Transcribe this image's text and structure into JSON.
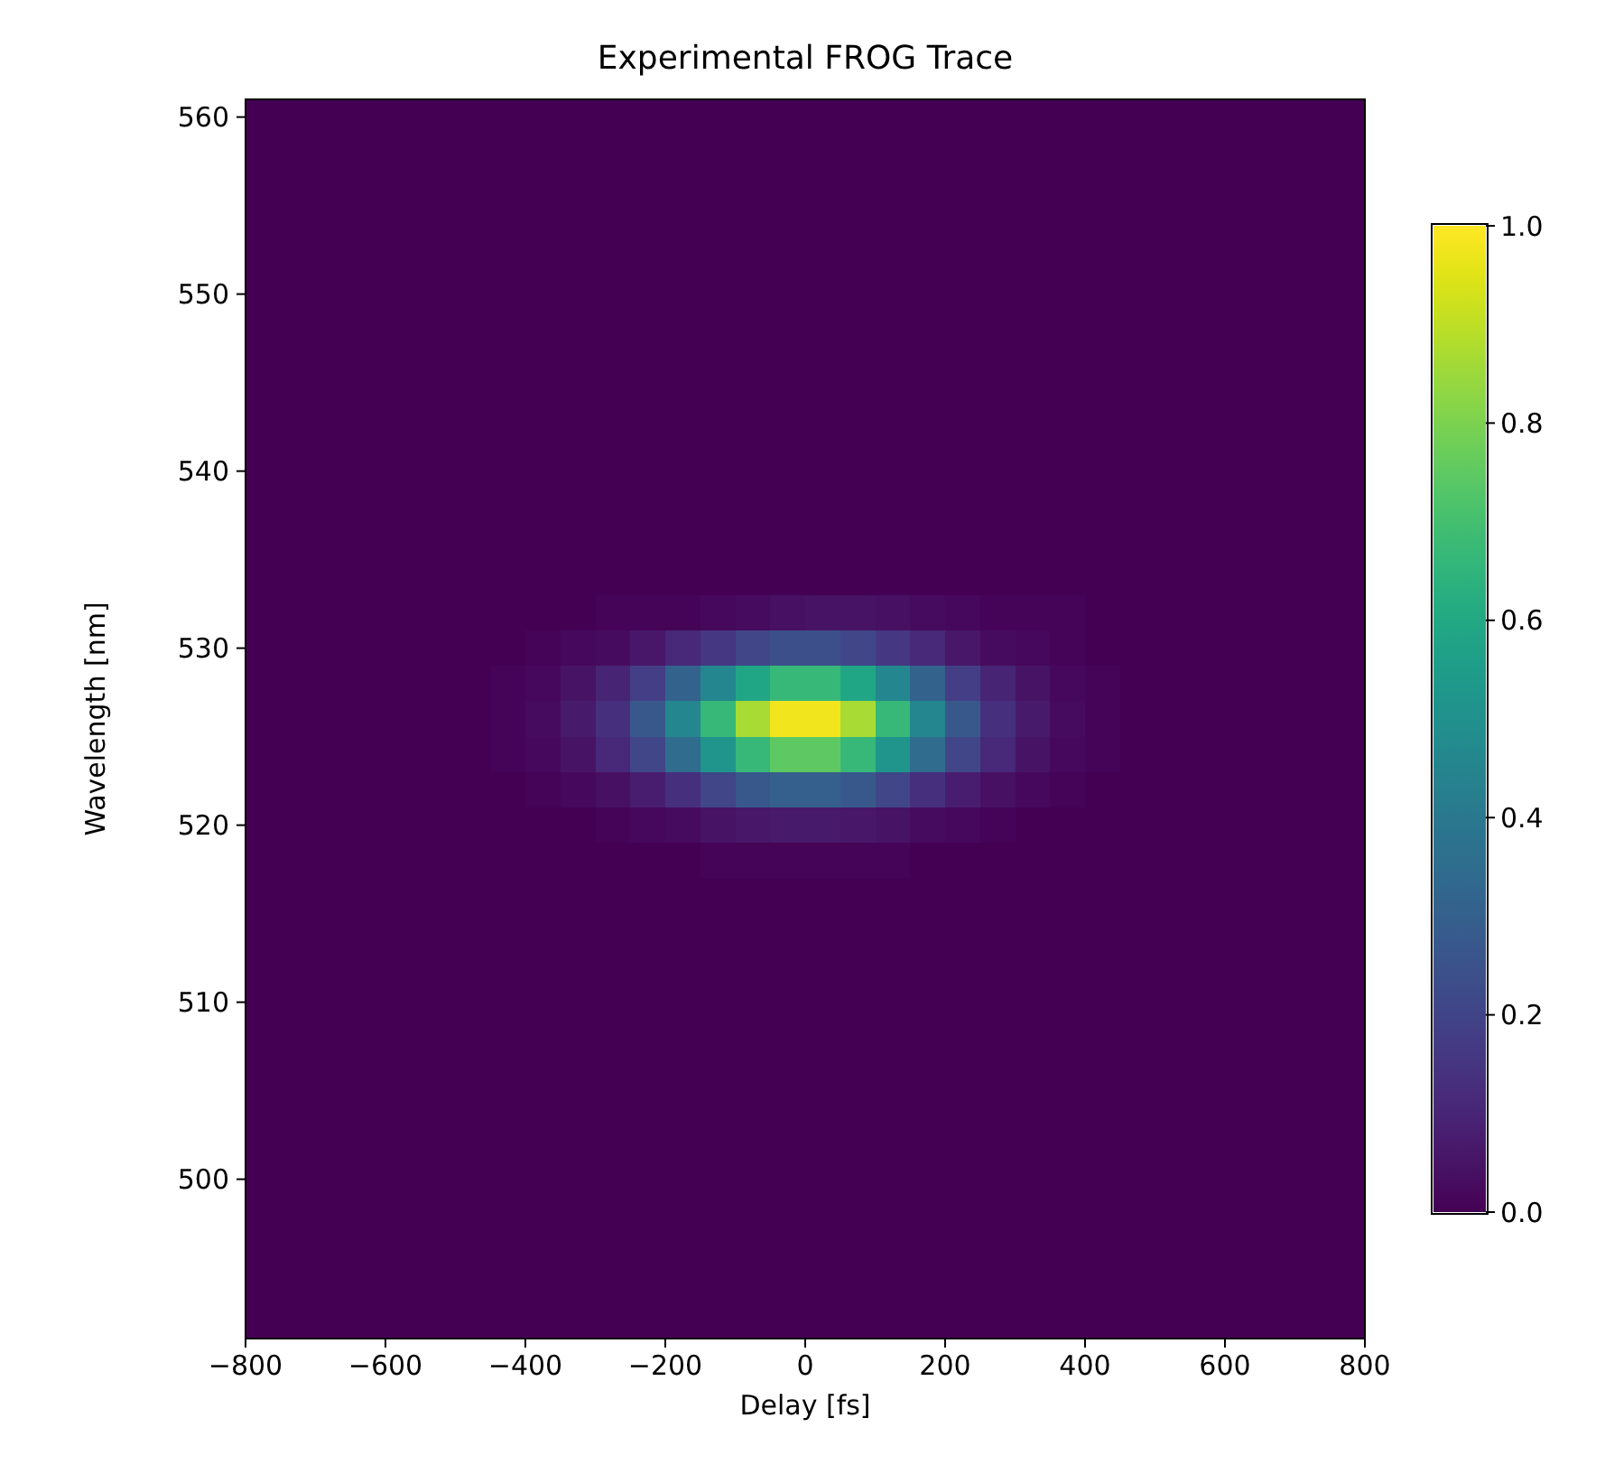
{
  "chart_data": {
    "type": "heatmap",
    "title": "Experimental FROG Trace",
    "xlabel": "Delay [fs]",
    "ylabel": "Wavelength [nm]",
    "x": [
      -775,
      -725,
      -675,
      -625,
      -575,
      -525,
      -475,
      -425,
      -375,
      -325,
      -275,
      -225,
      -175,
      -125,
      -75,
      -25,
      25,
      75,
      125,
      175,
      225,
      275,
      325,
      375,
      425,
      475,
      525,
      575,
      625,
      675,
      725,
      775
    ],
    "y": [
      560,
      558,
      556,
      554,
      552,
      550,
      548,
      546,
      544,
      542,
      540,
      538,
      536,
      534,
      532,
      530,
      528,
      526,
      524,
      522,
      520,
      518,
      516,
      514,
      512,
      510,
      508,
      506,
      504,
      502,
      500,
      498,
      496,
      494,
      492
    ],
    "xlim": [
      -800,
      800
    ],
    "xticks": [
      {
        "value": -800,
        "label": "−800"
      },
      {
        "value": -600,
        "label": "−600"
      },
      {
        "value": -400,
        "label": "−400"
      },
      {
        "value": -200,
        "label": "−200"
      },
      0,
      200,
      400,
      600,
      800
    ],
    "ylim": [
      491,
      561
    ],
    "yticks": [
      500,
      510,
      520,
      530,
      540,
      550,
      560
    ],
    "clim": [
      0,
      1
    ],
    "cticks": [
      {
        "value": 0,
        "label": "0.0"
      },
      {
        "value": 0.2,
        "label": "0.2"
      },
      {
        "value": 0.4,
        "label": "0.4"
      },
      {
        "value": 0.6,
        "label": "0.6"
      },
      {
        "value": 0.8,
        "label": "0.8"
      },
      {
        "value": 1,
        "label": "1.0"
      }
    ],
    "cells": [
      [
        0,
        0,
        0,
        0,
        0,
        0,
        0,
        0,
        0,
        0,
        0,
        0,
        0,
        0,
        0,
        0,
        0,
        0,
        0,
        0,
        0,
        0,
        0,
        0,
        0,
        0,
        0,
        0,
        0,
        0,
        0,
        0
      ],
      [
        0,
        0,
        0,
        0,
        0,
        0,
        0,
        0,
        0,
        0,
        0,
        0,
        0,
        0,
        0,
        0,
        0,
        0,
        0,
        0,
        0,
        0,
        0,
        0,
        0,
        0,
        0,
        0,
        0,
        0,
        0,
        0
      ],
      [
        0,
        0,
        0,
        0,
        0,
        0,
        0,
        0,
        0,
        0,
        0,
        0,
        0,
        0,
        0,
        0,
        0,
        0,
        0,
        0,
        0,
        0,
        0,
        0,
        0,
        0,
        0,
        0,
        0,
        0,
        0,
        0
      ],
      [
        0,
        0,
        0,
        0,
        0,
        0,
        0,
        0,
        0,
        0,
        0,
        0,
        0,
        0,
        0,
        0,
        0,
        0,
        0,
        0,
        0,
        0,
        0,
        0,
        0,
        0,
        0,
        0,
        0,
        0,
        0,
        0
      ],
      [
        0,
        0,
        0,
        0,
        0,
        0,
        0,
        0,
        0,
        0,
        0,
        0,
        0,
        0,
        0,
        0,
        0,
        0,
        0,
        0,
        0,
        0,
        0,
        0,
        0,
        0,
        0,
        0,
        0,
        0,
        0,
        0
      ],
      [
        0,
        0,
        0,
        0,
        0,
        0,
        0,
        0,
        0,
        0,
        0,
        0,
        0,
        0,
        0,
        0,
        0,
        0,
        0,
        0,
        0,
        0,
        0,
        0,
        0,
        0,
        0,
        0,
        0,
        0,
        0,
        0
      ],
      [
        0,
        0,
        0,
        0,
        0,
        0,
        0,
        0,
        0,
        0,
        0,
        0,
        0,
        0,
        0,
        0,
        0,
        0,
        0,
        0,
        0,
        0,
        0,
        0,
        0,
        0,
        0,
        0,
        0,
        0,
        0,
        0
      ],
      [
        0,
        0,
        0,
        0,
        0,
        0,
        0,
        0,
        0,
        0,
        0,
        0,
        0,
        0,
        0,
        0,
        0,
        0,
        0,
        0,
        0,
        0,
        0,
        0,
        0,
        0,
        0,
        0,
        0,
        0,
        0,
        0
      ],
      [
        0,
        0,
        0,
        0,
        0,
        0,
        0,
        0,
        0,
        0,
        0,
        0,
        0,
        0,
        0,
        0,
        0,
        0,
        0,
        0,
        0,
        0,
        0,
        0,
        0,
        0,
        0,
        0,
        0,
        0,
        0,
        0
      ],
      [
        0,
        0,
        0,
        0,
        0,
        0,
        0,
        0,
        0,
        0,
        0,
        0,
        0,
        0,
        0,
        0,
        0,
        0,
        0,
        0,
        0,
        0,
        0,
        0,
        0,
        0,
        0,
        0,
        0,
        0,
        0,
        0
      ],
      [
        0,
        0,
        0,
        0,
        0,
        0,
        0,
        0,
        0,
        0,
        0,
        0,
        0,
        0,
        0,
        0,
        0,
        0,
        0,
        0,
        0,
        0,
        0,
        0,
        0,
        0,
        0,
        0,
        0,
        0,
        0,
        0
      ],
      [
        0,
        0,
        0,
        0,
        0,
        0,
        0,
        0,
        0,
        0,
        0,
        0,
        0,
        0,
        0,
        0,
        0,
        0,
        0,
        0,
        0,
        0,
        0,
        0,
        0,
        0,
        0,
        0,
        0,
        0,
        0,
        0
      ],
      [
        0,
        0,
        0,
        0,
        0,
        0,
        0,
        0,
        0,
        0,
        0,
        0,
        0,
        0,
        0,
        0,
        0,
        0,
        0,
        0,
        0,
        0,
        0,
        0,
        0,
        0,
        0,
        0,
        0,
        0,
        0,
        0
      ],
      [
        0,
        0,
        0,
        0,
        0,
        0,
        0,
        0,
        0,
        0,
        0,
        0,
        0,
        0,
        0,
        0,
        0,
        0,
        0,
        0,
        0,
        0,
        0,
        0,
        0,
        0,
        0,
        0,
        0,
        0,
        0,
        0
      ],
      [
        0,
        0,
        0,
        0,
        0,
        0,
        0,
        0,
        0,
        0,
        0.01,
        0.01,
        0.01,
        0.02,
        0.03,
        0.04,
        0.05,
        0.05,
        0.04,
        0.03,
        0.02,
        0.01,
        0.01,
        0.01,
        0,
        0,
        0,
        0,
        0,
        0,
        0,
        0
      ],
      [
        0,
        0,
        0,
        0,
        0,
        0,
        0,
        0,
        0.01,
        0.02,
        0.03,
        0.06,
        0.11,
        0.16,
        0.21,
        0.24,
        0.24,
        0.21,
        0.16,
        0.11,
        0.06,
        0.03,
        0.02,
        0.01,
        0,
        0,
        0,
        0,
        0,
        0,
        0,
        0
      ],
      [
        0,
        0,
        0,
        0,
        0,
        0,
        0,
        0.01,
        0.02,
        0.05,
        0.1,
        0.18,
        0.31,
        0.46,
        0.59,
        0.67,
        0.67,
        0.59,
        0.46,
        0.31,
        0.18,
        0.1,
        0.05,
        0.02,
        0.01,
        0,
        0,
        0,
        0,
        0,
        0,
        0
      ],
      [
        0,
        0,
        0,
        0,
        0,
        0,
        0,
        0.01,
        0.03,
        0.07,
        0.14,
        0.27,
        0.46,
        0.67,
        0.87,
        0.98,
        0.98,
        0.87,
        0.67,
        0.46,
        0.27,
        0.14,
        0.07,
        0.03,
        0.01,
        0,
        0,
        0,
        0,
        0,
        0,
        0
      ],
      [
        0,
        0,
        0,
        0,
        0,
        0,
        0,
        0.01,
        0.02,
        0.05,
        0.11,
        0.21,
        0.35,
        0.52,
        0.67,
        0.75,
        0.75,
        0.67,
        0.52,
        0.35,
        0.21,
        0.11,
        0.05,
        0.02,
        0.01,
        0,
        0,
        0,
        0,
        0,
        0,
        0
      ],
      [
        0,
        0,
        0,
        0,
        0,
        0,
        0,
        0,
        0.01,
        0.02,
        0.04,
        0.08,
        0.14,
        0.21,
        0.27,
        0.3,
        0.3,
        0.27,
        0.21,
        0.14,
        0.08,
        0.04,
        0.02,
        0.01,
        0,
        0,
        0,
        0,
        0,
        0,
        0,
        0
      ],
      [
        0,
        0,
        0,
        0,
        0,
        0,
        0,
        0,
        0,
        0,
        0.01,
        0.02,
        0.03,
        0.05,
        0.06,
        0.07,
        0.07,
        0.06,
        0.05,
        0.03,
        0.02,
        0.01,
        0,
        0,
        0,
        0,
        0,
        0,
        0,
        0,
        0,
        0
      ],
      [
        0,
        0,
        0,
        0,
        0,
        0,
        0,
        0,
        0,
        0,
        0,
        0,
        0,
        0.01,
        0.01,
        0.01,
        0.01,
        0.01,
        0.01,
        0,
        0,
        0,
        0,
        0,
        0,
        0,
        0,
        0,
        0,
        0,
        0,
        0
      ],
      [
        0,
        0,
        0,
        0,
        0,
        0,
        0,
        0,
        0,
        0,
        0,
        0,
        0,
        0,
        0,
        0,
        0,
        0,
        0,
        0,
        0,
        0,
        0,
        0,
        0,
        0,
        0,
        0,
        0,
        0,
        0,
        0
      ],
      [
        0,
        0,
        0,
        0,
        0,
        0,
        0,
        0,
        0,
        0,
        0,
        0,
        0,
        0,
        0,
        0,
        0,
        0,
        0,
        0,
        0,
        0,
        0,
        0,
        0,
        0,
        0,
        0,
        0,
        0,
        0,
        0
      ],
      [
        0,
        0,
        0,
        0,
        0,
        0,
        0,
        0,
        0,
        0,
        0,
        0,
        0,
        0,
        0,
        0,
        0,
        0,
        0,
        0,
        0,
        0,
        0,
        0,
        0,
        0,
        0,
        0,
        0,
        0,
        0,
        0
      ],
      [
        0,
        0,
        0,
        0,
        0,
        0,
        0,
        0,
        0,
        0,
        0,
        0,
        0,
        0,
        0,
        0,
        0,
        0,
        0,
        0,
        0,
        0,
        0,
        0,
        0,
        0,
        0,
        0,
        0,
        0,
        0,
        0
      ],
      [
        0,
        0,
        0,
        0,
        0,
        0,
        0,
        0,
        0,
        0,
        0,
        0,
        0,
        0,
        0,
        0,
        0,
        0,
        0,
        0,
        0,
        0,
        0,
        0,
        0,
        0,
        0,
        0,
        0,
        0,
        0,
        0
      ],
      [
        0,
        0,
        0,
        0,
        0,
        0,
        0,
        0,
        0,
        0,
        0,
        0,
        0,
        0,
        0,
        0,
        0,
        0,
        0,
        0,
        0,
        0,
        0,
        0,
        0,
        0,
        0,
        0,
        0,
        0,
        0,
        0
      ],
      [
        0,
        0,
        0,
        0,
        0,
        0,
        0,
        0,
        0,
        0,
        0,
        0,
        0,
        0,
        0,
        0,
        0,
        0,
        0,
        0,
        0,
        0,
        0,
        0,
        0,
        0,
        0,
        0,
        0,
        0,
        0,
        0
      ],
      [
        0,
        0,
        0,
        0,
        0,
        0,
        0,
        0,
        0,
        0,
        0,
        0,
        0,
        0,
        0,
        0,
        0,
        0,
        0,
        0,
        0,
        0,
        0,
        0,
        0,
        0,
        0,
        0,
        0,
        0,
        0,
        0
      ],
      [
        0,
        0,
        0,
        0,
        0,
        0,
        0,
        0,
        0,
        0,
        0,
        0,
        0,
        0,
        0,
        0,
        0,
        0,
        0,
        0,
        0,
        0,
        0,
        0,
        0,
        0,
        0,
        0,
        0,
        0,
        0,
        0
      ],
      [
        0,
        0,
        0,
        0,
        0,
        0,
        0,
        0,
        0,
        0,
        0,
        0,
        0,
        0,
        0,
        0,
        0,
        0,
        0,
        0,
        0,
        0,
        0,
        0,
        0,
        0,
        0,
        0,
        0,
        0,
        0,
        0
      ],
      [
        0,
        0,
        0,
        0,
        0,
        0,
        0,
        0,
        0,
        0,
        0,
        0,
        0,
        0,
        0,
        0,
        0,
        0,
        0,
        0,
        0,
        0,
        0,
        0,
        0,
        0,
        0,
        0,
        0,
        0,
        0,
        0
      ],
      [
        0,
        0,
        0,
        0,
        0,
        0,
        0,
        0,
        0,
        0,
        0,
        0,
        0,
        0,
        0,
        0,
        0,
        0,
        0,
        0,
        0,
        0,
        0,
        0,
        0,
        0,
        0,
        0,
        0,
        0,
        0,
        0
      ],
      [
        0,
        0,
        0,
        0,
        0,
        0,
        0,
        0,
        0,
        0,
        0,
        0,
        0,
        0,
        0,
        0,
        0,
        0,
        0,
        0,
        0,
        0,
        0,
        0,
        0,
        0,
        0,
        0,
        0,
        0,
        0,
        0
      ]
    ]
  }
}
